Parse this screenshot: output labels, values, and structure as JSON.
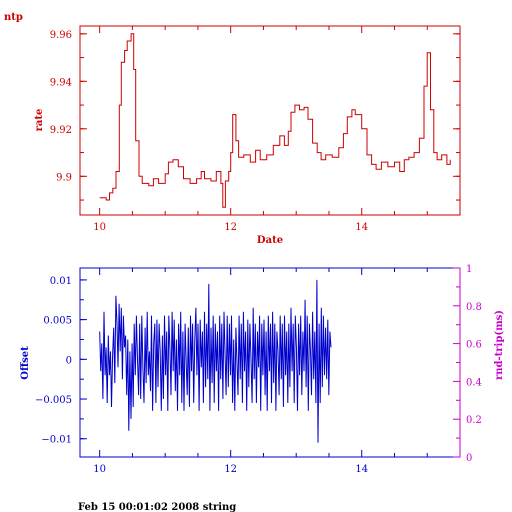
{
  "page": {
    "corner_label": "ntp",
    "footer": "Feb 15 00:01:02 2008 string"
  },
  "colors": {
    "top": "#cc0000",
    "bottom": "#0000cc",
    "right_axis": "#cc00cc"
  },
  "chart_data": [
    {
      "type": "line",
      "title": "",
      "xlabel": "Date",
      "ylabel": "rate",
      "xlim": [
        9.7,
        15.5
      ],
      "ylim": [
        9.8837,
        9.9633
      ],
      "x_ticks": [
        10,
        12,
        14
      ],
      "y_ticks": [
        9.9,
        9.92,
        9.94,
        9.96
      ],
      "y_tick_labels": [
        "9.9",
        "9.92",
        "9.94",
        "9.96"
      ],
      "grid": false,
      "series": [
        {
          "color": "#cc0000",
          "points": [
            [
              10.0,
              9.891
            ],
            [
              10.1,
              9.89
            ],
            [
              10.15,
              9.893
            ],
            [
              10.2,
              9.895
            ],
            [
              10.25,
              9.902
            ],
            [
              10.3,
              9.93
            ],
            [
              10.33,
              9.948
            ],
            [
              10.38,
              9.953
            ],
            [
              10.42,
              9.957
            ],
            [
              10.48,
              9.96
            ],
            [
              10.52,
              9.945
            ],
            [
              10.55,
              9.915
            ],
            [
              10.6,
              9.9
            ],
            [
              10.65,
              9.897
            ],
            [
              10.75,
              9.896
            ],
            [
              10.82,
              9.899
            ],
            [
              10.9,
              9.897
            ],
            [
              11.0,
              9.901
            ],
            [
              11.05,
              9.906
            ],
            [
              11.12,
              9.907
            ],
            [
              11.2,
              9.904
            ],
            [
              11.28,
              9.899
            ],
            [
              11.38,
              9.897
            ],
            [
              11.48,
              9.899
            ],
            [
              11.55,
              9.902
            ],
            [
              11.6,
              9.899
            ],
            [
              11.7,
              9.898
            ],
            [
              11.78,
              9.902
            ],
            [
              11.85,
              9.897
            ],
            [
              11.88,
              9.887
            ],
            [
              11.92,
              9.898
            ],
            [
              11.97,
              9.902
            ],
            [
              12.0,
              9.91
            ],
            [
              12.03,
              9.926
            ],
            [
              12.08,
              9.915
            ],
            [
              12.12,
              9.908
            ],
            [
              12.2,
              9.909
            ],
            [
              12.3,
              9.906
            ],
            [
              12.38,
              9.911
            ],
            [
              12.45,
              9.907
            ],
            [
              12.55,
              9.909
            ],
            [
              12.65,
              9.913
            ],
            [
              12.75,
              9.917
            ],
            [
              12.82,
              9.913
            ],
            [
              12.88,
              9.919
            ],
            [
              12.92,
              9.927
            ],
            [
              12.98,
              9.93
            ],
            [
              13.05,
              9.928
            ],
            [
              13.12,
              9.929
            ],
            [
              13.18,
              9.924
            ],
            [
              13.25,
              9.914
            ],
            [
              13.32,
              9.91
            ],
            [
              13.38,
              9.907
            ],
            [
              13.45,
              9.909
            ],
            [
              13.55,
              9.908
            ],
            [
              13.65,
              9.912
            ],
            [
              13.72,
              9.918
            ],
            [
              13.78,
              9.925
            ],
            [
              13.85,
              9.928
            ],
            [
              13.9,
              9.926
            ],
            [
              14.0,
              9.92
            ],
            [
              14.08,
              9.909
            ],
            [
              14.15,
              9.905
            ],
            [
              14.22,
              9.903
            ],
            [
              14.3,
              9.906
            ],
            [
              14.4,
              9.904
            ],
            [
              14.5,
              9.906
            ],
            [
              14.58,
              9.902
            ],
            [
              14.65,
              9.907
            ],
            [
              14.72,
              9.908
            ],
            [
              14.8,
              9.91
            ],
            [
              14.88,
              9.916
            ],
            [
              14.95,
              9.938
            ],
            [
              15.0,
              9.952
            ],
            [
              15.05,
              9.928
            ],
            [
              15.1,
              9.91
            ],
            [
              15.15,
              9.907
            ],
            [
              15.22,
              9.909
            ],
            [
              15.3,
              9.905
            ],
            [
              15.35,
              9.907
            ]
          ]
        }
      ]
    },
    {
      "type": "line",
      "title": "",
      "xlabel": "",
      "ylabel": "Offset",
      "y2label": "rnd-trip(ms)",
      "xlim": [
        9.7,
        15.5
      ],
      "ylim": [
        -0.0123,
        0.0115
      ],
      "y2lim": [
        0,
        1
      ],
      "x_ticks": [
        10,
        12,
        14
      ],
      "y_ticks": [
        -0.01,
        -0.005,
        0,
        0.005,
        0.01
      ],
      "y_tick_labels": [
        "−0.01",
        "−0.005",
        "0",
        "0.005",
        "0.01"
      ],
      "y2_ticks": [
        0,
        0.2,
        0.4,
        0.6,
        0.8,
        1
      ],
      "y2_tick_labels": [
        "0",
        "0.2",
        "0.4",
        "0.6",
        "0.8",
        "1"
      ],
      "grid": false,
      "series": [
        {
          "color": "#0000cc",
          "x_start": 10.0,
          "x_step": 0.0165,
          "values": [
            0.0035,
            -0.0015,
            0.002,
            -0.005,
            0.006,
            -0.002,
            0.0015,
            -0.0055,
            0.003,
            -0.002,
            0.001,
            -0.006,
            0.0005,
            0.004,
            -0.003,
            0.008,
            0.0045,
            -0.001,
            0.007,
            0.001,
            0.0065,
            -0.0025,
            0.0055,
            0.0015,
            0.003,
            -0.0045,
            0.0025,
            -0.009,
            0.001,
            -0.0075,
            0.002,
            -0.006,
            0.0045,
            -0.002,
            0.0055,
            0.0,
            -0.0045,
            0.0045,
            -0.005,
            0.0055,
            -0.001,
            -0.0055,
            0.004,
            -0.003,
            0.006,
            -0.002,
            0.001,
            -0.004,
            0.0055,
            -0.0065,
            0.002,
            0.0045,
            -0.0055,
            0.005,
            -0.0035,
            0.0045,
            0.001,
            -0.0065,
            0.003,
            -0.005,
            0.0055,
            -0.002,
            0.0035,
            -0.0065,
            0.0055,
            0.0015,
            -0.0045,
            0.006,
            -0.0015,
            0.005,
            -0.004,
            0.0025,
            -0.0065,
            0.0045,
            -0.002,
            0.006,
            -0.0055,
            0.0035,
            -0.0065,
            0.0045,
            0.0,
            -0.0045,
            0.004,
            -0.006,
            0.0055,
            -0.0015,
            0.0045,
            -0.0055,
            0.0025,
            0.0065,
            -0.002,
            0.0045,
            -0.0065,
            0.005,
            -0.001,
            0.0035,
            -0.0055,
            0.006,
            -0.0035,
            0.0045,
            -0.0025,
            0.0095,
            -0.0065,
            0.004,
            -0.003,
            0.0055,
            -0.0055,
            0.0045,
            -0.0015,
            0.0035,
            -0.0065,
            0.0055,
            -0.0025,
            0.0045,
            -0.005,
            0.006,
            0.0005,
            -0.0045,
            0.0055,
            -0.0035,
            0.0045,
            -0.002,
            0.0055,
            -0.0055,
            0.0025,
            -0.0065,
            0.004,
            0.0,
            -0.0045,
            0.0055,
            -0.0025,
            0.0045,
            -0.0055,
            0.006,
            -0.0015,
            0.0035,
            -0.0065,
            0.005,
            -0.0035,
            0.0045,
            0.0,
            -0.0055,
            0.0065,
            -0.0025,
            0.0045,
            -0.0055,
            0.0035,
            -0.001,
            0.0055,
            -0.0065,
            0.0045,
            -0.002,
            0.005,
            -0.0045,
            0.0035,
            -0.0065,
            0.0055,
            -0.0015,
            0.0045,
            -0.0055,
            0.006,
            -0.003,
            0.0045,
            -0.0065,
            0.0035,
            0.001,
            -0.0045,
            0.0055,
            -0.0025,
            0.0045,
            -0.006,
            0.0055,
            -0.002,
            0.0035,
            -0.0055,
            0.0045,
            -0.0035,
            0.0065,
            -0.0015,
            0.0045,
            -0.0055,
            0.0055,
            0.0015,
            -0.0065,
            0.0045,
            -0.002,
            0.0055,
            -0.0045,
            0.0035,
            -0.0015,
            0.0075,
            -0.0035,
            0.0055,
            -0.0065,
            0.0045,
            0.001,
            -0.0045,
            0.006,
            -0.0025,
            0.0035,
            -0.0055,
            0.01,
            -0.0105,
            0.0045,
            -0.0055,
            0.0065,
            -0.0035,
            0.0055,
            -0.002,
            0.004,
            -0.0025,
            0.005,
            -0.0045,
            0.0035,
            0.0015
          ]
        }
      ]
    }
  ]
}
